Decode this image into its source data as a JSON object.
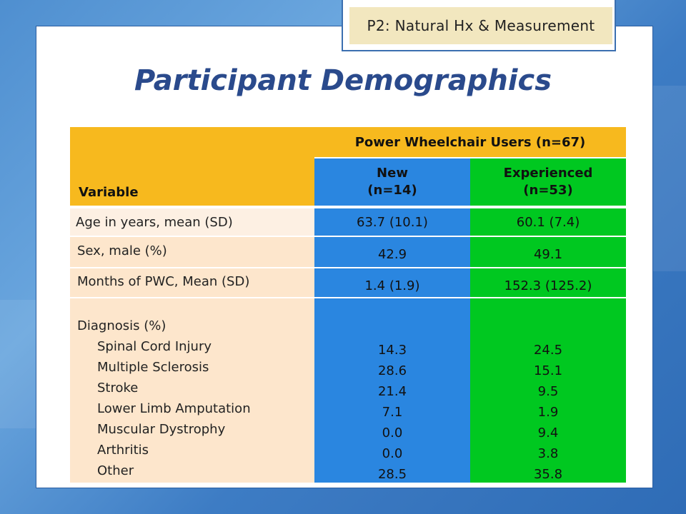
{
  "section_tag": "P2: Natural Hx & Measurement",
  "title": "Participant Demographics",
  "table": {
    "header_variable": "Variable",
    "header_group": "Power Wheelchair Users (n=67)",
    "col_new": {
      "line1": "New",
      "line2": "(n=14)"
    },
    "col_experienced": {
      "line1": "Experienced",
      "line2": "(n=53)"
    },
    "rows": [
      {
        "label": "Age in years, mean (SD)",
        "new": "63.7 (10.1)",
        "experienced": "60.1 (7.4)"
      },
      {
        "label": "Sex, male (%)",
        "new": "42.9",
        "experienced": "49.1"
      },
      {
        "label": "Months of PWC, Mean (SD)",
        "new": "1.4 (1.9)",
        "experienced": "152.3 (125.2)"
      }
    ],
    "diagnosis": {
      "label": "Diagnosis (%)",
      "items": [
        {
          "label": "Spinal Cord Injury",
          "new": "14.3",
          "experienced": "24.5"
        },
        {
          "label": "Multiple Sclerosis",
          "new": "28.6",
          "experienced": "15.1"
        },
        {
          "label": "Stroke",
          "new": "21.4",
          "experienced": "9.5"
        },
        {
          "label": "Lower Limb Amputation",
          "new": "7.1",
          "experienced": "1.9"
        },
        {
          "label": "Muscular Dystrophy",
          "new": "0.0",
          "experienced": "9.4"
        },
        {
          "label": "Arthritis",
          "new": "0.0",
          "experienced": "3.8"
        },
        {
          "label": "Other",
          "new": "28.5",
          "experienced": "35.8"
        }
      ]
    }
  },
  "colors": {
    "header": "#f7b91e",
    "new": "#2a86e0",
    "experienced": "#00c820",
    "label_bg": "#fde6cc",
    "title": "#2a4a8c"
  }
}
